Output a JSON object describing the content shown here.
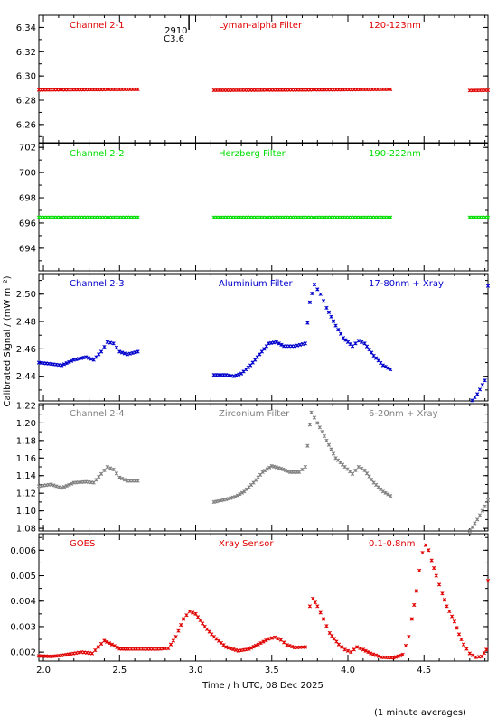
{
  "ylabel": "Calibrated Signal / (mW m⁻²)",
  "xlabel": "Time / h UTC, 08 Dec 2025",
  "footnote": "(1 minute averages)",
  "event_marker": {
    "line1": "2910",
    "line2": "C3.6",
    "time": 2.95
  },
  "colors": {
    "red": "#e00000",
    "green": "#00dd00",
    "blue": "#0000cc",
    "gray": "#808080",
    "axis": "#000000"
  },
  "chart_data": [
    {
      "type": "scatter",
      "name": "Channel 2-1",
      "filter": "Lyman-alpha Filter",
      "band": "120-123nm",
      "color": "#e00000",
      "ylim": [
        6.245,
        6.35
      ],
      "yticks": [
        6.26,
        6.28,
        6.3,
        6.32,
        6.34
      ],
      "yfmt": 2,
      "xlim": [
        1.97,
        4.92
      ],
      "segments": [
        {
          "x0": 1.97,
          "x1": 2.62,
          "points": [
            [
              0,
              6.2885
            ],
            [
              1,
              6.289
            ]
          ]
        },
        {
          "x0": 3.12,
          "x1": 4.28,
          "points": [
            [
              0,
              6.2882
            ],
            [
              0.5,
              6.2885
            ],
            [
              1,
              6.289
            ]
          ]
        },
        {
          "x0": 4.8,
          "x1": 4.92,
          "points": [
            [
              0,
              6.288
            ],
            [
              1,
              6.2882
            ]
          ]
        }
      ]
    },
    {
      "type": "scatter",
      "name": "Channel 2-2",
      "filter": "Herzberg Filter",
      "band": "190-222nm",
      "color": "#00dd00",
      "ylim": [
        692.2,
        702.3
      ],
      "yticks": [
        694,
        696,
        698,
        700,
        702
      ],
      "yfmt": 0,
      "xlim": [
        1.97,
        4.92
      ],
      "segments": [
        {
          "x0": 1.97,
          "x1": 2.62,
          "points": [
            [
              0,
              696.45
            ],
            [
              1,
              696.45
            ]
          ]
        },
        {
          "x0": 3.12,
          "x1": 4.28,
          "points": [
            [
              0,
              696.45
            ],
            [
              1,
              696.45
            ]
          ]
        },
        {
          "x0": 4.8,
          "x1": 4.92,
          "points": [
            [
              0,
              696.45
            ],
            [
              1,
              696.45
            ]
          ]
        }
      ]
    },
    {
      "type": "scatter",
      "name": "Channel 2-3",
      "filter": "Aluminium Filter",
      "band": "17-80nm + Xray",
      "color": "#0000cc",
      "ylim": [
        2.422,
        2.515
      ],
      "yticks": [
        2.44,
        2.46,
        2.48,
        2.5
      ],
      "yfmt": 2,
      "xlim": [
        1.97,
        4.92
      ],
      "segments": [
        {
          "x0": 1.97,
          "x1": 2.62,
          "points": [
            [
              1.97,
              2.45
            ],
            [
              2.05,
              2.449
            ],
            [
              2.12,
              2.448
            ],
            [
              2.2,
              2.452
            ],
            [
              2.28,
              2.454
            ],
            [
              2.33,
              2.452
            ],
            [
              2.38,
              2.458
            ],
            [
              2.42,
              2.465
            ],
            [
              2.46,
              2.464
            ],
            [
              2.5,
              2.458
            ],
            [
              2.55,
              2.456
            ],
            [
              2.62,
              2.458
            ]
          ],
          "abs": true
        },
        {
          "x0": 3.12,
          "x1": 4.28,
          "points": [
            [
              3.12,
              2.441
            ],
            [
              3.2,
              2.441
            ],
            [
              3.25,
              2.44
            ],
            [
              3.3,
              2.442
            ],
            [
              3.36,
              2.448
            ],
            [
              3.42,
              2.456
            ],
            [
              3.48,
              2.464
            ],
            [
              3.53,
              2.465
            ],
            [
              3.58,
              2.462
            ],
            [
              3.65,
              2.462
            ],
            [
              3.72,
              2.464
            ],
            [
              3.75,
              2.494
            ],
            [
              3.78,
              2.507
            ],
            [
              3.82,
              2.5
            ],
            [
              3.86,
              2.49
            ],
            [
              3.92,
              2.477
            ],
            [
              3.97,
              2.468
            ],
            [
              4.03,
              2.462
            ],
            [
              4.07,
              2.466
            ],
            [
              4.11,
              2.464
            ],
            [
              4.17,
              2.455
            ],
            [
              4.23,
              2.448
            ],
            [
              4.28,
              2.445
            ]
          ],
          "abs": true
        },
        {
          "x0": 4.8,
          "x1": 4.92,
          "points": [
            [
              4.8,
              2.42
            ],
            [
              4.85,
              2.427
            ],
            [
              4.9,
              2.437
            ],
            [
              4.92,
              2.506
            ]
          ],
          "abs": true
        }
      ]
    },
    {
      "type": "scatter",
      "name": "Channel 2-4",
      "filter": "Zirconium Filter",
      "band": "6-20nm + Xray",
      "color": "#808080",
      "ylim": [
        1.077,
        1.222
      ],
      "yticks": [
        1.08,
        1.1,
        1.12,
        1.14,
        1.16,
        1.18,
        1.2,
        1.22
      ],
      "yfmt": 2,
      "xlim": [
        1.97,
        4.92
      ],
      "segments": [
        {
          "x0": 1.97,
          "x1": 2.62,
          "points": [
            [
              1.97,
              1.128
            ],
            [
              2.05,
              1.13
            ],
            [
              2.12,
              1.126
            ],
            [
              2.2,
              1.132
            ],
            [
              2.28,
              1.133
            ],
            [
              2.33,
              1.132
            ],
            [
              2.38,
              1.142
            ],
            [
              2.42,
              1.15
            ],
            [
              2.46,
              1.147
            ],
            [
              2.5,
              1.138
            ],
            [
              2.55,
              1.134
            ],
            [
              2.62,
              1.134
            ]
          ],
          "abs": true
        },
        {
          "x0": 3.12,
          "x1": 4.28,
          "points": [
            [
              3.12,
              1.11
            ],
            [
              3.2,
              1.113
            ],
            [
              3.26,
              1.116
            ],
            [
              3.32,
              1.122
            ],
            [
              3.38,
              1.132
            ],
            [
              3.44,
              1.144
            ],
            [
              3.5,
              1.151
            ],
            [
              3.56,
              1.148
            ],
            [
              3.62,
              1.144
            ],
            [
              3.68,
              1.144
            ],
            [
              3.72,
              1.15
            ],
            [
              3.75,
              1.198
            ],
            [
              3.76,
              1.212
            ],
            [
              3.8,
              1.2
            ],
            [
              3.86,
              1.18
            ],
            [
              3.92,
              1.16
            ],
            [
              3.98,
              1.15
            ],
            [
              4.03,
              1.142
            ],
            [
              4.07,
              1.15
            ],
            [
              4.11,
              1.146
            ],
            [
              4.17,
              1.132
            ],
            [
              4.23,
              1.122
            ],
            [
              4.28,
              1.117
            ]
          ],
          "abs": true
        },
        {
          "x0": 4.8,
          "x1": 4.92,
          "points": [
            [
              4.8,
              1.077
            ],
            [
              4.85,
              1.09
            ],
            [
              4.9,
              1.105
            ],
            [
              4.92,
              1.112
            ]
          ],
          "abs": true
        }
      ]
    },
    {
      "type": "scatter",
      "name": "GOES",
      "filter": "Xray Sensor",
      "band": "0.1-0.8nm",
      "color": "#e00000",
      "ylim": [
        0.00165,
        0.00665
      ],
      "yticks": [
        0.002,
        0.003,
        0.004,
        0.005,
        0.006
      ],
      "yfmt": 3,
      "xlim": [
        1.97,
        4.92
      ],
      "segments": [
        {
          "x0": 1.97,
          "x1": 3.72,
          "points": [
            [
              1.97,
              0.00185
            ],
            [
              2.05,
              0.00183
            ],
            [
              2.12,
              0.00187
            ],
            [
              2.18,
              0.00193
            ],
            [
              2.25,
              0.002
            ],
            [
              2.32,
              0.00195
            ],
            [
              2.36,
              0.0022
            ],
            [
              2.4,
              0.00245
            ],
            [
              2.45,
              0.0023
            ],
            [
              2.5,
              0.00213
            ],
            [
              2.56,
              0.00212
            ],
            [
              2.65,
              0.00212
            ],
            [
              2.75,
              0.00212
            ],
            [
              2.82,
              0.00215
            ],
            [
              2.87,
              0.0026
            ],
            [
              2.92,
              0.0033
            ],
            [
              2.96,
              0.0036
            ],
            [
              3.0,
              0.0035
            ],
            [
              3.06,
              0.003
            ],
            [
              3.12,
              0.0026
            ],
            [
              3.2,
              0.0022
            ],
            [
              3.28,
              0.00205
            ],
            [
              3.35,
              0.00212
            ],
            [
              3.41,
              0.0023
            ],
            [
              3.48,
              0.00252
            ],
            [
              3.52,
              0.00258
            ],
            [
              3.56,
              0.00248
            ],
            [
              3.6,
              0.00228
            ],
            [
              3.65,
              0.00218
            ],
            [
              3.72,
              0.0022
            ]
          ],
          "abs": true
        },
        {
          "x0": 3.75,
          "x1": 4.55,
          "points": [
            [
              3.75,
              0.0038
            ],
            [
              3.77,
              0.0041
            ],
            [
              3.8,
              0.0038
            ],
            [
              3.84,
              0.0033
            ],
            [
              3.88,
              0.00275
            ],
            [
              3.94,
              0.0023
            ],
            [
              3.98,
              0.0021
            ],
            [
              4.02,
              0.002
            ],
            [
              4.06,
              0.0022
            ],
            [
              4.1,
              0.0021
            ],
            [
              4.15,
              0.00195
            ],
            [
              4.22,
              0.0018
            ],
            [
              4.3,
              0.00178
            ],
            [
              4.36,
              0.0019
            ],
            [
              4.4,
              0.0026
            ],
            [
              4.42,
              0.0033
            ],
            [
              4.45,
              0.0044
            ],
            [
              4.47,
              0.0052
            ],
            [
              4.49,
              0.0059
            ],
            [
              4.51,
              0.0062
            ],
            [
              4.53,
              0.006
            ],
            [
              4.55,
              0.0056
            ],
            [
              4.58,
              0.005
            ],
            [
              4.62,
              0.0043
            ],
            [
              4.65,
              0.0038
            ],
            [
              4.7,
              0.0032
            ],
            [
              4.73,
              0.0027
            ],
            [
              4.76,
              0.0023
            ],
            [
              4.8,
              0.00195
            ],
            [
              4.84,
              0.0018
            ],
            [
              4.88,
              0.00183
            ],
            [
              4.91,
              0.0021
            ],
            [
              4.92,
              0.0048
            ]
          ],
          "abs": true
        }
      ]
    }
  ],
  "xaxis": {
    "ticks": [
      2.0,
      2.5,
      3.0,
      3.5,
      4.0,
      4.5
    ],
    "minor": 0.1
  }
}
